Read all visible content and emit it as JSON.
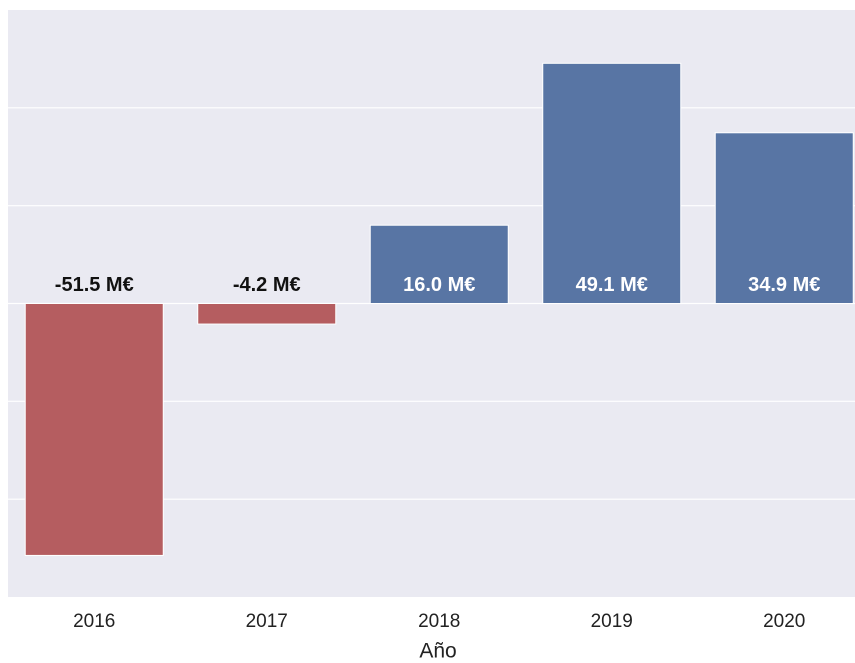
{
  "chart_data": {
    "type": "bar",
    "x_label": "Año",
    "categories": [
      "2016",
      "2017",
      "2018",
      "2019",
      "2020"
    ],
    "values": [
      -51.5,
      -4.2,
      16.0,
      49.1,
      34.9
    ],
    "value_labels": [
      "-51.5 M€",
      "-4.2 M€",
      "16.0 M€",
      "49.1 M€",
      "34.9 M€"
    ],
    "colors": [
      "#b55d60",
      "#b55d60",
      "#5875a4",
      "#5875a4",
      "#5875a4"
    ],
    "ylim": [
      -60,
      60
    ],
    "yticks": [
      -40,
      -20,
      0,
      20,
      40
    ],
    "grid": true
  }
}
